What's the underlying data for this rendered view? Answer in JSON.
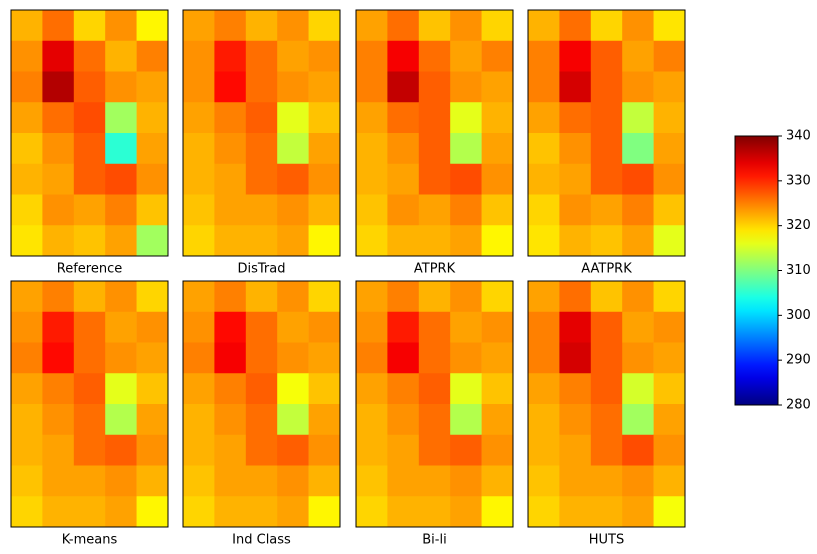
{
  "chart_data": {
    "type": "heatmap",
    "colormap": "jet",
    "zlim": [
      280,
      340
    ],
    "zticks": [
      280,
      290,
      300,
      310,
      320,
      330,
      340
    ],
    "panels": [
      {
        "title": "Reference",
        "values": [
          [
            322,
            326,
            320,
            324,
            318
          ],
          [
            324,
            334,
            326,
            322,
            325
          ],
          [
            325,
            337,
            327,
            324,
            323
          ],
          [
            323,
            326,
            328,
            312,
            322
          ],
          [
            321,
            324,
            327,
            305,
            323
          ],
          [
            322,
            323,
            327,
            328,
            324
          ],
          [
            320,
            324,
            323,
            325,
            321
          ],
          [
            319,
            322,
            321,
            323,
            312
          ]
        ]
      },
      {
        "title": "DisTrad",
        "values": [
          [
            323,
            325,
            322,
            324,
            320
          ],
          [
            324,
            331,
            326,
            323,
            324
          ],
          [
            324,
            332,
            326,
            324,
            323
          ],
          [
            323,
            325,
            327,
            316,
            321
          ],
          [
            322,
            324,
            326,
            314,
            323
          ],
          [
            322,
            323,
            326,
            327,
            324
          ],
          [
            321,
            323,
            323,
            324,
            322
          ],
          [
            320,
            322,
            322,
            323,
            318
          ]
        ]
      },
      {
        "title": "ATPRK",
        "values": [
          [
            323,
            326,
            321,
            324,
            320
          ],
          [
            325,
            333,
            326,
            323,
            325
          ],
          [
            325,
            336,
            327,
            324,
            323
          ],
          [
            323,
            326,
            327,
            316,
            322
          ],
          [
            322,
            324,
            327,
            313,
            323
          ],
          [
            322,
            323,
            327,
            328,
            324
          ],
          [
            321,
            324,
            323,
            325,
            321
          ],
          [
            320,
            322,
            322,
            323,
            318
          ]
        ]
      },
      {
        "title": "AATPRK",
        "values": [
          [
            322,
            326,
            320,
            324,
            319
          ],
          [
            325,
            333,
            327,
            323,
            325
          ],
          [
            325,
            335,
            327,
            324,
            323
          ],
          [
            323,
            326,
            327,
            314,
            322
          ],
          [
            321,
            324,
            327,
            310,
            323
          ],
          [
            322,
            323,
            327,
            328,
            324
          ],
          [
            320,
            324,
            323,
            325,
            321
          ],
          [
            319,
            322,
            321,
            323,
            316
          ]
        ]
      },
      {
        "title": "K-means",
        "values": [
          [
            323,
            325,
            322,
            324,
            320
          ],
          [
            324,
            331,
            326,
            323,
            324
          ],
          [
            325,
            332,
            326,
            324,
            323
          ],
          [
            323,
            325,
            327,
            316,
            321
          ],
          [
            322,
            324,
            326,
            313,
            323
          ],
          [
            322,
            323,
            326,
            327,
            324
          ],
          [
            321,
            323,
            323,
            324,
            322
          ],
          [
            320,
            322,
            322,
            323,
            318
          ]
        ]
      },
      {
        "title": "Ind Class",
        "values": [
          [
            323,
            325,
            322,
            324,
            320
          ],
          [
            324,
            332,
            326,
            323,
            324
          ],
          [
            325,
            333,
            326,
            324,
            323
          ],
          [
            323,
            325,
            327,
            317,
            321
          ],
          [
            322,
            324,
            326,
            314,
            323
          ],
          [
            322,
            323,
            326,
            327,
            324
          ],
          [
            321,
            323,
            323,
            324,
            322
          ],
          [
            320,
            322,
            322,
            323,
            318
          ]
        ]
      },
      {
        "title": "Bi-li",
        "values": [
          [
            323,
            325,
            322,
            324,
            320
          ],
          [
            324,
            331,
            326,
            323,
            324
          ],
          [
            325,
            333,
            326,
            324,
            323
          ],
          [
            323,
            325,
            327,
            316,
            321
          ],
          [
            322,
            324,
            326,
            313,
            323
          ],
          [
            322,
            323,
            326,
            327,
            324
          ],
          [
            321,
            323,
            323,
            324,
            322
          ],
          [
            320,
            322,
            322,
            323,
            318
          ]
        ]
      },
      {
        "title": "HUTS",
        "values": [
          [
            323,
            326,
            321,
            324,
            320
          ],
          [
            325,
            334,
            327,
            323,
            324
          ],
          [
            325,
            335,
            327,
            324,
            323
          ],
          [
            323,
            325,
            327,
            315,
            321
          ],
          [
            322,
            324,
            326,
            312,
            323
          ],
          [
            322,
            323,
            326,
            328,
            324
          ],
          [
            321,
            323,
            323,
            324,
            322
          ],
          [
            320,
            322,
            322,
            323,
            317
          ]
        ]
      }
    ]
  }
}
